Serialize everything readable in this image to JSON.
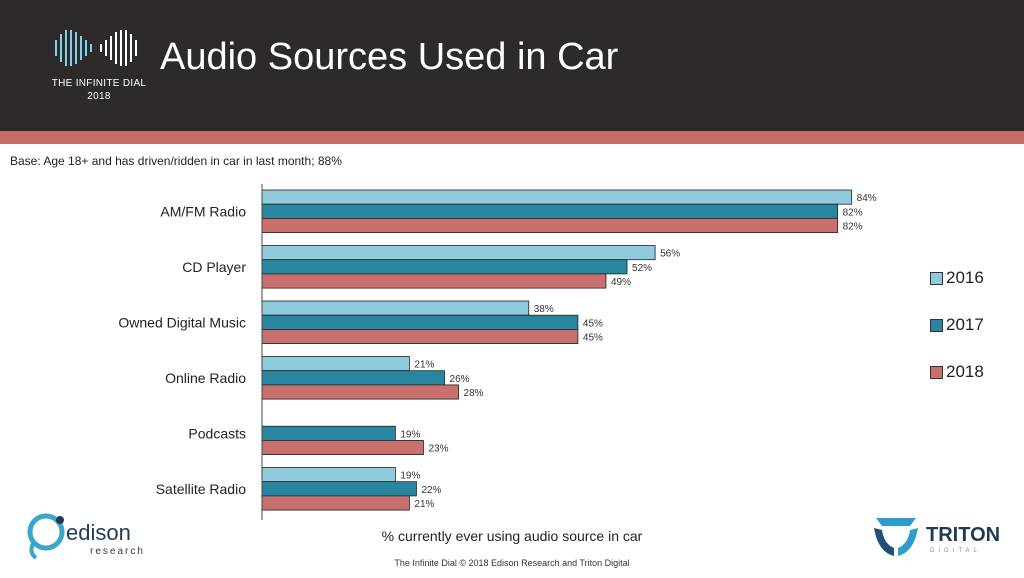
{
  "header": {
    "title": "Audio Sources Used in Car",
    "logo_line1": "THE INFINITE DIAL",
    "logo_line2": "2018"
  },
  "base_note": "Base: Age 18+ and has driven/ridden in car in last month; 88%",
  "footer": "The Infinite Dial  © 2018 Edison Research and Triton Digital",
  "brands": {
    "edison": "edison",
    "edison_sub": "research",
    "triton": "TRITON",
    "triton_sub": "DIGITAL"
  },
  "chart_data": {
    "type": "bar",
    "orientation": "horizontal",
    "title": "",
    "xlabel": "% currently ever using audio source in car",
    "ylabel": "",
    "xlim": [
      0,
      100
    ],
    "categories": [
      "AM/FM Radio",
      "CD Player",
      "Owned Digital Music",
      "Online Radio",
      "Podcasts",
      "Satellite Radio"
    ],
    "series": [
      {
        "name": "2016",
        "color": "#8fcbdc",
        "values": [
          84,
          56,
          38,
          21,
          null,
          19
        ]
      },
      {
        "name": "2017",
        "color": "#2a86a0",
        "values": [
          82,
          52,
          45,
          26,
          19,
          22
        ]
      },
      {
        "name": "2018",
        "color": "#c8706e",
        "values": [
          82,
          49,
          45,
          28,
          23,
          21
        ]
      }
    ],
    "legend_position": "right",
    "grid": false
  }
}
